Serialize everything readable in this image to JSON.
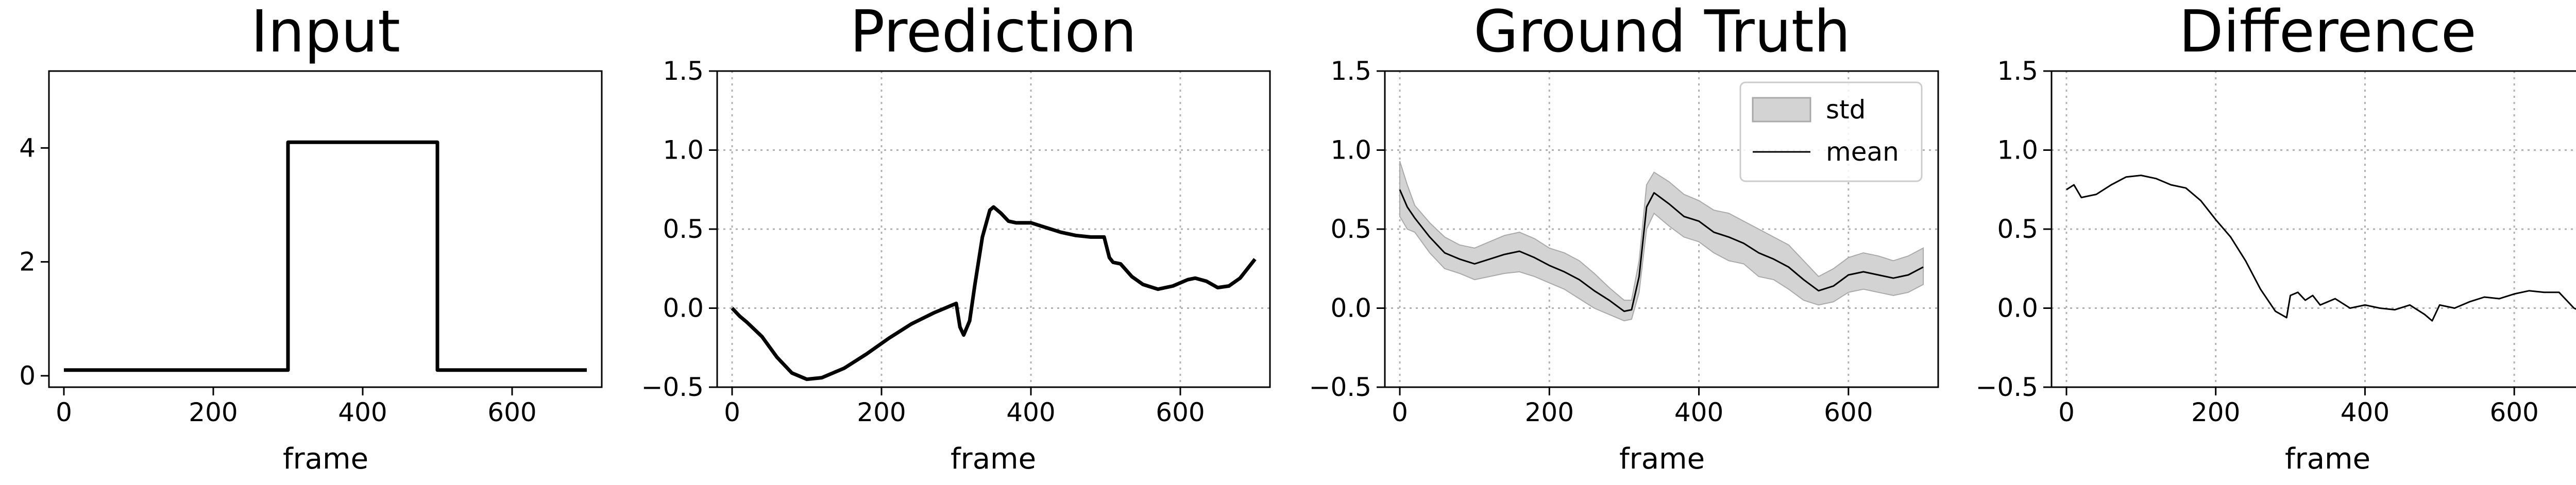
{
  "colors": {
    "line": "#000000",
    "band": "#d3d3d3",
    "grid": "#b0b0b0",
    "axis": "#000000"
  },
  "chart_data": [
    {
      "type": "line",
      "title": "Input",
      "xlabel": "frame",
      "ylabel": "",
      "xlim": [
        -20,
        720
      ],
      "ylim": [
        -0.2,
        5.35
      ],
      "xticks": [
        0,
        200,
        400,
        600
      ],
      "yticks": [
        0,
        2,
        4
      ],
      "grid": false,
      "series": [
        {
          "values": [
            [
              0,
              0.1
            ],
            [
              300,
              0.1
            ],
            [
              300,
              4.1
            ],
            [
              500,
              4.1
            ],
            [
              500,
              0.1
            ],
            [
              700,
              0.1
            ]
          ]
        }
      ]
    },
    {
      "type": "line",
      "title": "Prediction",
      "xlabel": "frame",
      "ylabel": "",
      "xlim": [
        -20,
        720
      ],
      "ylim": [
        -0.5,
        1.5
      ],
      "xticks": [
        0,
        200,
        400,
        600
      ],
      "yticks": [
        -0.5,
        0.0,
        0.5,
        1.0,
        1.5
      ],
      "grid": true,
      "series": [
        {
          "values": [
            [
              0,
              0.0
            ],
            [
              10,
              -0.05
            ],
            [
              20,
              -0.09
            ],
            [
              40,
              -0.18
            ],
            [
              60,
              -0.31
            ],
            [
              80,
              -0.41
            ],
            [
              100,
              -0.45
            ],
            [
              120,
              -0.44
            ],
            [
              150,
              -0.38
            ],
            [
              180,
              -0.29
            ],
            [
              210,
              -0.19
            ],
            [
              240,
              -0.1
            ],
            [
              270,
              -0.03
            ],
            [
              295,
              0.02
            ],
            [
              300,
              0.03
            ],
            [
              305,
              -0.12
            ],
            [
              310,
              -0.17
            ],
            [
              318,
              -0.08
            ],
            [
              325,
              0.15
            ],
            [
              335,
              0.45
            ],
            [
              345,
              0.62
            ],
            [
              350,
              0.64
            ],
            [
              360,
              0.6
            ],
            [
              370,
              0.55
            ],
            [
              380,
              0.54
            ],
            [
              400,
              0.54
            ],
            [
              420,
              0.51
            ],
            [
              440,
              0.48
            ],
            [
              460,
              0.46
            ],
            [
              480,
              0.45
            ],
            [
              498,
              0.45
            ],
            [
              505,
              0.32
            ],
            [
              510,
              0.29
            ],
            [
              520,
              0.28
            ],
            [
              535,
              0.2
            ],
            [
              550,
              0.15
            ],
            [
              570,
              0.12
            ],
            [
              590,
              0.14
            ],
            [
              610,
              0.18
            ],
            [
              620,
              0.19
            ],
            [
              635,
              0.17
            ],
            [
              650,
              0.13
            ],
            [
              665,
              0.14
            ],
            [
              680,
              0.19
            ],
            [
              700,
              0.31
            ]
          ]
        }
      ]
    },
    {
      "type": "area",
      "title": "Ground Truth",
      "xlabel": "frame",
      "ylabel": "",
      "xlim": [
        -20,
        720
      ],
      "ylim": [
        -0.5,
        1.5
      ],
      "xticks": [
        0,
        200,
        400,
        600
      ],
      "yticks": [
        -0.5,
        0.0,
        0.5,
        1.0,
        1.5
      ],
      "grid": true,
      "legend": {
        "placement": "top-right",
        "entries": [
          "std",
          "mean"
        ]
      },
      "series": [
        {
          "name": "std",
          "x": [
            0,
            10,
            20,
            40,
            60,
            80,
            100,
            120,
            140,
            160,
            180,
            200,
            220,
            240,
            260,
            280,
            300,
            310,
            320,
            330,
            340,
            360,
            380,
            400,
            420,
            440,
            460,
            480,
            500,
            520,
            540,
            560,
            580,
            600,
            620,
            640,
            660,
            680,
            700
          ],
          "lower": [
            0.58,
            0.5,
            0.48,
            0.35,
            0.25,
            0.22,
            0.18,
            0.2,
            0.22,
            0.23,
            0.2,
            0.16,
            0.12,
            0.06,
            0.0,
            -0.04,
            -0.08,
            -0.07,
            0.1,
            0.5,
            0.6,
            0.52,
            0.45,
            0.42,
            0.35,
            0.3,
            0.28,
            0.2,
            0.18,
            0.12,
            0.05,
            0.02,
            0.04,
            0.1,
            0.12,
            0.1,
            0.08,
            0.1,
            0.15
          ],
          "upper": [
            0.93,
            0.78,
            0.65,
            0.54,
            0.45,
            0.4,
            0.38,
            0.42,
            0.46,
            0.48,
            0.44,
            0.38,
            0.35,
            0.3,
            0.22,
            0.13,
            0.05,
            0.05,
            0.3,
            0.78,
            0.86,
            0.8,
            0.72,
            0.68,
            0.62,
            0.6,
            0.55,
            0.5,
            0.45,
            0.4,
            0.3,
            0.2,
            0.25,
            0.32,
            0.35,
            0.33,
            0.3,
            0.33,
            0.38
          ]
        },
        {
          "name": "mean",
          "values": [
            [
              0,
              0.75
            ],
            [
              10,
              0.64
            ],
            [
              20,
              0.57
            ],
            [
              40,
              0.45
            ],
            [
              60,
              0.35
            ],
            [
              80,
              0.31
            ],
            [
              100,
              0.28
            ],
            [
              120,
              0.31
            ],
            [
              140,
              0.34
            ],
            [
              160,
              0.36
            ],
            [
              180,
              0.32
            ],
            [
              200,
              0.27
            ],
            [
              220,
              0.23
            ],
            [
              240,
              0.18
            ],
            [
              260,
              0.11
            ],
            [
              280,
              0.05
            ],
            [
              300,
              -0.02
            ],
            [
              310,
              -0.01
            ],
            [
              320,
              0.2
            ],
            [
              330,
              0.64
            ],
            [
              340,
              0.73
            ],
            [
              360,
              0.66
            ],
            [
              380,
              0.58
            ],
            [
              400,
              0.55
            ],
            [
              420,
              0.48
            ],
            [
              440,
              0.45
            ],
            [
              460,
              0.41
            ],
            [
              480,
              0.35
            ],
            [
              500,
              0.31
            ],
            [
              520,
              0.26
            ],
            [
              540,
              0.18
            ],
            [
              560,
              0.11
            ],
            [
              580,
              0.14
            ],
            [
              600,
              0.21
            ],
            [
              620,
              0.23
            ],
            [
              640,
              0.21
            ],
            [
              660,
              0.19
            ],
            [
              680,
              0.21
            ],
            [
              700,
              0.26
            ]
          ]
        }
      ]
    },
    {
      "type": "line",
      "title": "Difference",
      "xlabel": "frame",
      "ylabel": "",
      "xlim": [
        -20,
        720
      ],
      "ylim": [
        -0.5,
        1.5
      ],
      "xticks": [
        0,
        200,
        400,
        600
      ],
      "yticks": [
        -0.5,
        0.0,
        0.5,
        1.0,
        1.5
      ],
      "grid": true,
      "series": [
        {
          "values": [
            [
              0,
              0.75
            ],
            [
              10,
              0.78
            ],
            [
              20,
              0.7
            ],
            [
              40,
              0.72
            ],
            [
              60,
              0.78
            ],
            [
              80,
              0.83
            ],
            [
              100,
              0.84
            ],
            [
              120,
              0.82
            ],
            [
              140,
              0.78
            ],
            [
              160,
              0.76
            ],
            [
              180,
              0.68
            ],
            [
              200,
              0.56
            ],
            [
              220,
              0.45
            ],
            [
              240,
              0.3
            ],
            [
              260,
              0.12
            ],
            [
              280,
              -0.02
            ],
            [
              295,
              -0.06
            ],
            [
              300,
              0.08
            ],
            [
              310,
              0.1
            ],
            [
              320,
              0.05
            ],
            [
              330,
              0.08
            ],
            [
              340,
              0.02
            ],
            [
              360,
              0.06
            ],
            [
              380,
              0.0
            ],
            [
              400,
              0.02
            ],
            [
              420,
              0.0
            ],
            [
              440,
              -0.01
            ],
            [
              460,
              0.02
            ],
            [
              480,
              -0.04
            ],
            [
              490,
              -0.08
            ],
            [
              500,
              0.02
            ],
            [
              520,
              0.0
            ],
            [
              540,
              0.04
            ],
            [
              560,
              0.07
            ],
            [
              580,
              0.06
            ],
            [
              600,
              0.09
            ],
            [
              620,
              0.11
            ],
            [
              640,
              0.1
            ],
            [
              660,
              0.1
            ],
            [
              680,
              0.0
            ],
            [
              700,
              -0.04
            ]
          ]
        }
      ]
    }
  ]
}
